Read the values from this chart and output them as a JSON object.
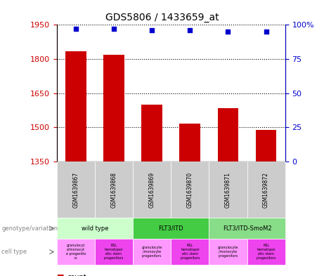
{
  "title": "GDS5806 / 1433659_at",
  "samples": [
    "GSM1639867",
    "GSM1639868",
    "GSM1639869",
    "GSM1639870",
    "GSM1639871",
    "GSM1639872"
  ],
  "counts": [
    1833,
    1820,
    1600,
    1516,
    1585,
    1490
  ],
  "percentiles": [
    97,
    97,
    96,
    96,
    95,
    95
  ],
  "ylim_left": [
    1350,
    1950
  ],
  "ylim_right": [
    0,
    100
  ],
  "yticks_left": [
    1350,
    1500,
    1650,
    1800,
    1950
  ],
  "yticks_right": [
    0,
    25,
    50,
    75,
    100
  ],
  "bar_color": "#cc0000",
  "dot_color": "#0000cc",
  "bg_color": "#ffffff",
  "left_axis_color": "#cc0000",
  "right_axis_color": "#0000cc",
  "genotypes": [
    {
      "label": "wild type",
      "start": 0,
      "end": 2,
      "color": "#ccffcc"
    },
    {
      "label": "FLT3/ITD",
      "start": 2,
      "end": 4,
      "color": "#44cc44"
    },
    {
      "label": "FLT3/ITD-SmoM2",
      "start": 4,
      "end": 6,
      "color": "#88dd88"
    }
  ],
  "cell_types": [
    {
      "label": "granulocyt\ne/monocyt\ne progenito\nrs",
      "start": 0,
      "end": 1,
      "color": "#ff99ff"
    },
    {
      "label": "KSL\nhematopoi\netic stem\nprogenitors",
      "start": 1,
      "end": 2,
      "color": "#ee44ee"
    },
    {
      "label": "granulocyte\n/monocyte\nprogenitors",
      "start": 2,
      "end": 3,
      "color": "#ff99ff"
    },
    {
      "label": "KSL\nhematopoi\netic stem\nprogenitors",
      "start": 3,
      "end": 4,
      "color": "#ee44ee"
    },
    {
      "label": "granulocyte\n/monocyte\nprogenitors",
      "start": 4,
      "end": 5,
      "color": "#ff99ff"
    },
    {
      "label": "KSL\nhematopoi\netic stem\nprogenitors",
      "start": 5,
      "end": 6,
      "color": "#ee44ee"
    }
  ],
  "legend_count_color": "#cc0000",
  "legend_percentile_color": "#0000cc"
}
